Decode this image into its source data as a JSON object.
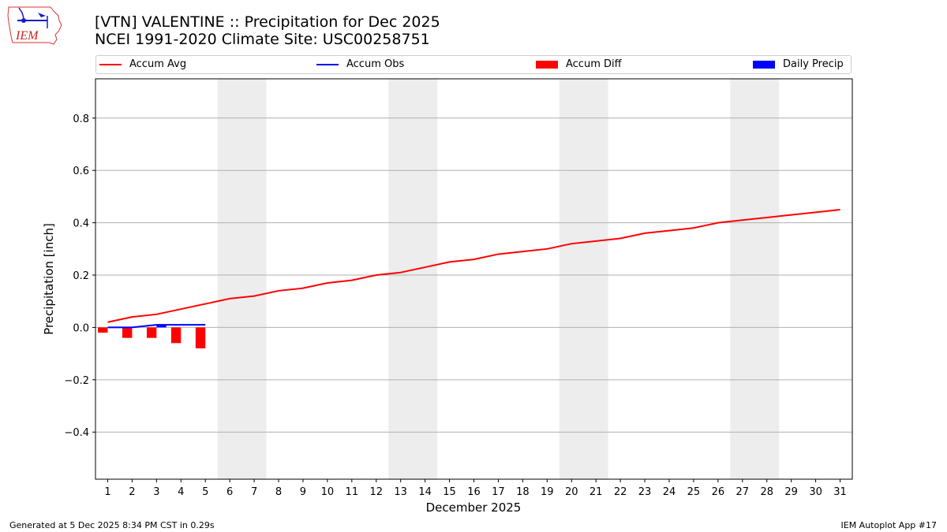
{
  "header": {
    "title_line1": "[VTN] VALENTINE :: Precipitation for Dec 2025",
    "title_line2": "NCEI 1991-2020 Climate Site: USC00258751",
    "logo_text": "IEM"
  },
  "legend": [
    {
      "label": "Accum Avg",
      "type": "line",
      "color": "#ff0000"
    },
    {
      "label": "Accum Obs",
      "type": "line",
      "color": "#0000ff"
    },
    {
      "label": "Accum Diff",
      "type": "bar",
      "color": "#ff0000"
    },
    {
      "label": "Daily Precip",
      "type": "bar",
      "color": "#0000ff"
    }
  ],
  "footer": {
    "left": "Generated at 5 Dec 2025 8:34 PM CST in 0.29s",
    "right": "IEM Autoplot App #17"
  },
  "chart_data": {
    "type": "line",
    "title": "[VTN] VALENTINE :: Precipitation for Dec 2025",
    "subtitle": "NCEI 1991-2020 Climate Site: USC00258751",
    "xlabel": "December 2025",
    "ylabel": "Precipitation [inch]",
    "ylim": [
      -0.58,
      0.95
    ],
    "xlim": [
      0.5,
      31.5
    ],
    "yticks": [
      -0.4,
      -0.2,
      0.0,
      0.2,
      0.4,
      0.6,
      0.8
    ],
    "ytick_labels": [
      "−0.4",
      "−0.2",
      "0.0",
      "0.2",
      "0.4",
      "0.6",
      "0.8"
    ],
    "x": [
      1,
      2,
      3,
      4,
      5,
      6,
      7,
      8,
      9,
      10,
      11,
      12,
      13,
      14,
      15,
      16,
      17,
      18,
      19,
      20,
      21,
      22,
      23,
      24,
      25,
      26,
      27,
      28,
      29,
      30,
      31
    ],
    "grid": true,
    "legend_position": "top",
    "weekend_shading": [
      [
        5.5,
        7.5
      ],
      [
        12.5,
        14.5
      ],
      [
        19.5,
        21.5
      ],
      [
        26.5,
        28.5
      ]
    ],
    "series": [
      {
        "name": "Accum Avg",
        "type": "line",
        "color": "#ff0000",
        "x": [
          1,
          2,
          3,
          4,
          5,
          6,
          7,
          8,
          9,
          10,
          11,
          12,
          13,
          14,
          15,
          16,
          17,
          18,
          19,
          20,
          21,
          22,
          23,
          24,
          25,
          26,
          27,
          28,
          29,
          30,
          31
        ],
        "values": [
          0.02,
          0.04,
          0.05,
          0.07,
          0.09,
          0.11,
          0.12,
          0.14,
          0.15,
          0.17,
          0.18,
          0.2,
          0.21,
          0.23,
          0.25,
          0.26,
          0.28,
          0.29,
          0.3,
          0.32,
          0.33,
          0.34,
          0.36,
          0.37,
          0.38,
          0.4,
          0.41,
          0.42,
          0.43,
          0.44,
          0.45
        ]
      },
      {
        "name": "Accum Obs",
        "type": "line",
        "color": "#0000ff",
        "x": [
          1,
          2,
          3,
          4,
          5
        ],
        "values": [
          0.0,
          0.0,
          0.01,
          0.01,
          0.01
        ]
      },
      {
        "name": "Accum Diff",
        "type": "bar",
        "color": "#ff0000",
        "x": [
          1,
          2,
          3,
          4,
          5
        ],
        "values": [
          -0.02,
          -0.04,
          -0.04,
          -0.06,
          -0.08
        ]
      },
      {
        "name": "Daily Precip",
        "type": "bar",
        "color": "#0000ff",
        "x": [
          1,
          2,
          3,
          4,
          5
        ],
        "values": [
          0.0,
          0.0,
          0.01,
          0.0,
          0.0
        ]
      }
    ]
  }
}
